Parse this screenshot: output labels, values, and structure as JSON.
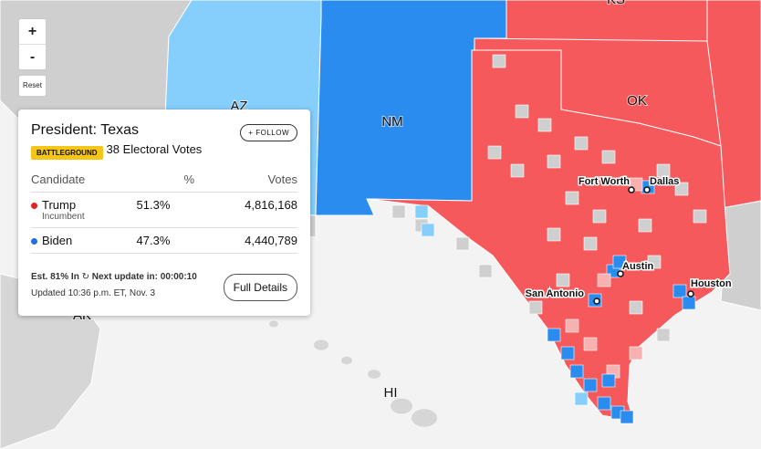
{
  "zoom_controls": {
    "zoom_in": "+",
    "zoom_out": "-",
    "reset": "Reset"
  },
  "state_labels": [
    "KS",
    "AZ",
    "NM",
    "OK",
    "AK",
    "HI"
  ],
  "city_labels": [
    "Fort Worth",
    "Dallas",
    "Austin",
    "San Antonio",
    "Houston"
  ],
  "card": {
    "title": "President: Texas",
    "follow": "+ FOLLOW",
    "badge": "BATTLEGROUND",
    "electoral_votes": "38 Electoral Votes",
    "headers": [
      "Candidate",
      "%",
      "Votes"
    ],
    "rows": [
      {
        "name": "Trump",
        "note": "Incumbent",
        "percent": "51.3%",
        "votes": "4,816,168"
      },
      {
        "name": "Biden",
        "percent": "47.3%",
        "votes": "4,440,789"
      }
    ],
    "estimate": "Est. 81% In",
    "next_update": "Next update in: 00:00:10",
    "updated": "Updated 10:36 p.m. ET, Nov. 3",
    "details_button": "Full Details"
  }
}
